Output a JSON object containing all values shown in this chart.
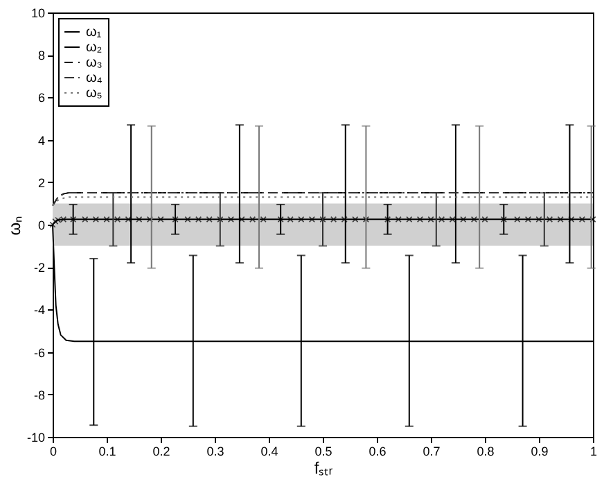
{
  "chart_data": {
    "type": "line",
    "xlabel": "fₛₜᵣ",
    "ylabel": "ωₙ",
    "xlim": [
      0,
      1
    ],
    "ylim": [
      -10,
      10
    ],
    "xticks": [
      0,
      0.1,
      0.2,
      0.3,
      0.4,
      0.5,
      0.6,
      0.7,
      0.8,
      0.9,
      1
    ],
    "yticks": [
      -10,
      -8,
      -6,
      -4,
      -2,
      0,
      2,
      4,
      6,
      8,
      10
    ],
    "grid": false,
    "legend": "top left",
    "bands": [
      {
        "axis": "y",
        "from": -1,
        "to": 1,
        "color": "#d0d0d0"
      }
    ],
    "series": [
      {
        "name": "ω₁",
        "color": "#000000",
        "marker": "cross",
        "line_style": "solid",
        "x": [
          0,
          0.005,
          0.01,
          0.02,
          0.038,
          0.06,
          0.08,
          0.1,
          0.12,
          0.14,
          0.16,
          0.18,
          0.2,
          0.227,
          0.25,
          0.27,
          0.29,
          0.31,
          0.33,
          0.35,
          0.37,
          0.39,
          0.422,
          0.44,
          0.46,
          0.48,
          0.5,
          0.52,
          0.54,
          0.56,
          0.58,
          0.62,
          0.64,
          0.66,
          0.68,
          0.7,
          0.72,
          0.74,
          0.76,
          0.78,
          0.8,
          0.835,
          0.86,
          0.88,
          0.9,
          0.92,
          0.94,
          0.96,
          0.98,
          1.0
        ],
        "values": [
          0,
          0.15,
          0.22,
          0.25,
          0.25,
          0.25,
          0.25,
          0.25,
          0.25,
          0.25,
          0.25,
          0.25,
          0.25,
          0.25,
          0.25,
          0.25,
          0.25,
          0.25,
          0.25,
          0.25,
          0.25,
          0.25,
          0.25,
          0.25,
          0.25,
          0.25,
          0.25,
          0.25,
          0.25,
          0.25,
          0.25,
          0.25,
          0.25,
          0.25,
          0.25,
          0.25,
          0.25,
          0.25,
          0.25,
          0.25,
          0.25,
          0.25,
          0.25,
          0.25,
          0.25,
          0.25,
          0.25,
          0.25,
          0.25,
          0.25
        ],
        "errors": [
          null,
          null,
          null,
          null,
          [
            -0.45,
            0.95
          ],
          null,
          null,
          null,
          null,
          null,
          null,
          null,
          null,
          [
            -0.45,
            0.95
          ],
          null,
          null,
          null,
          null,
          null,
          null,
          null,
          null,
          [
            -0.45,
            0.95
          ],
          null,
          null,
          null,
          null,
          null,
          null,
          null,
          null,
          [
            -0.45,
            0.95
          ],
          null,
          null,
          null,
          null,
          null,
          null,
          null,
          null,
          null,
          [
            -0.45,
            0.95
          ],
          null,
          null,
          null,
          null,
          null,
          null,
          null,
          null
        ]
      },
      {
        "name": "ω₂",
        "color": "#000000",
        "marker": "none",
        "line_style": "solid",
        "x": [
          0,
          0.003,
          0.006,
          0.01,
          0.015,
          0.025,
          0.04,
          0.076,
          0.26,
          0.46,
          0.66,
          0.87,
          1.0
        ],
        "values": [
          0,
          -2,
          -3.8,
          -4.7,
          -5.2,
          -5.45,
          -5.5,
          -5.5,
          -5.5,
          -5.5,
          -5.5,
          -5.5,
          -5.5
        ],
        "errors": [
          null,
          null,
          null,
          null,
          null,
          null,
          null,
          [
            -9.45,
            -1.6
          ],
          [
            -9.5,
            -1.45
          ],
          [
            -9.5,
            -1.45
          ],
          [
            -9.5,
            -1.45
          ],
          [
            -9.5,
            -1.45
          ],
          null
        ]
      },
      {
        "name": "ω₃",
        "color": "#000000",
        "marker": "none",
        "line_style": "dashed",
        "x": [
          0,
          0.01,
          0.02,
          0.03,
          0.145,
          0.346,
          0.542,
          0.746,
          0.957,
          1.0
        ],
        "values": [
          0.9,
          1.3,
          1.45,
          1.5,
          1.5,
          1.5,
          1.5,
          1.5,
          1.5,
          1.5
        ],
        "errors": [
          null,
          null,
          null,
          null,
          [
            -1.8,
            4.7
          ],
          [
            -1.8,
            4.7
          ],
          [
            -1.8,
            4.7
          ],
          [
            -1.8,
            4.7
          ],
          [
            -1.8,
            4.7
          ],
          null
        ]
      },
      {
        "name": "ω₄",
        "color": "#333333",
        "marker": "none",
        "line_style": "dashdot",
        "x": [
          0,
          0.01,
          0.02,
          0.03,
          0.112,
          0.31,
          0.5,
          0.71,
          0.91,
          1.0
        ],
        "values": [
          0.9,
          1.3,
          1.45,
          1.5,
          1.5,
          1.5,
          1.5,
          1.5,
          1.5,
          1.5
        ],
        "errors": [
          null,
          null,
          null,
          null,
          [
            -1,
            1.5
          ],
          [
            -1,
            1.5
          ],
          [
            -1,
            1.5
          ],
          [
            -1,
            1.5
          ],
          [
            -1,
            1.5
          ],
          null
        ]
      },
      {
        "name": "ω₅",
        "color": "#777777",
        "marker": "none",
        "line_style": "dotted",
        "x": [
          0,
          0.01,
          0.02,
          0.03,
          0.183,
          0.382,
          0.58,
          0.79,
          0.997,
          1.0
        ],
        "values": [
          0.9,
          1.15,
          1.25,
          1.3,
          1.3,
          1.3,
          1.3,
          1.3,
          1.3,
          1.3
        ],
        "errors": [
          null,
          null,
          null,
          null,
          [
            -2.05,
            4.65
          ],
          [
            -2.05,
            4.65
          ],
          [
            -2.05,
            4.65
          ],
          [
            -2.05,
            4.65
          ],
          [
            -2.05,
            4.65
          ],
          null
        ]
      }
    ]
  }
}
